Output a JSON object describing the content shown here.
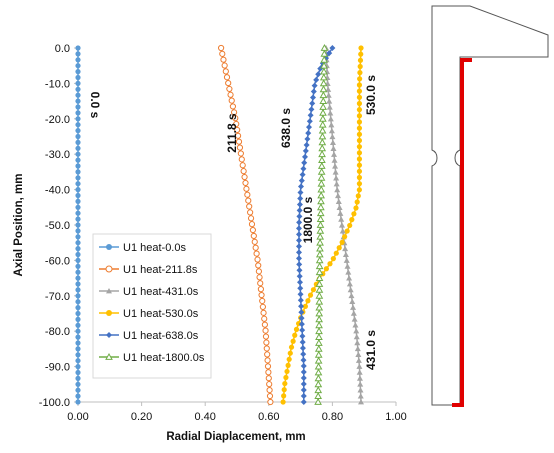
{
  "chart_data": {
    "type": "line",
    "title": "",
    "xlabel": "Radial Diaplacement, mm",
    "ylabel": "Axial Position, mm",
    "xlim": [
      0,
      1.0
    ],
    "ylim": [
      -100,
      0
    ],
    "x_ticks": [
      "0.00",
      "0.20",
      "0.40",
      "0.60",
      "0.80",
      "1.00"
    ],
    "y_ticks": [
      "0.0",
      "-10.0",
      "-20.0",
      "-30.0",
      "-40.0",
      "-50.0",
      "-60.0",
      "-70.0",
      "-80.0",
      "-90.0",
      "-100.0"
    ],
    "grid": false,
    "legend": "left",
    "series": [
      {
        "name": "U1 heat-0.0s",
        "color": "#5b9bd5",
        "marker": "circle-filled",
        "annotation": "0.0 s",
        "points": [
          [
            0.0,
            0
          ],
          [
            0.0,
            -100
          ]
        ]
      },
      {
        "name": "U1 heat-211.8s",
        "color": "#ed7d31",
        "marker": "circle-open",
        "annotation": "211.8 s",
        "points": [
          [
            0.45,
            0
          ],
          [
            0.495,
            -20
          ],
          [
            0.53,
            -40
          ],
          [
            0.565,
            -60
          ],
          [
            0.59,
            -80
          ],
          [
            0.605,
            -100
          ]
        ]
      },
      {
        "name": "U1 heat-431.0s",
        "color": "#a5a5a5",
        "marker": "triangle-filled",
        "annotation": "431.0 s",
        "points": [
          [
            0.78,
            0
          ],
          [
            0.785,
            -10
          ],
          [
            0.795,
            -20
          ],
          [
            0.805,
            -30
          ],
          [
            0.815,
            -40
          ],
          [
            0.83,
            -50
          ],
          [
            0.845,
            -60
          ],
          [
            0.86,
            -70
          ],
          [
            0.875,
            -80
          ],
          [
            0.885,
            -90
          ],
          [
            0.89,
            -100
          ]
        ]
      },
      {
        "name": "U1 heat-530.0s",
        "color": "#ffc000",
        "marker": "circle-filled",
        "annotation": "530.0 s",
        "points": [
          [
            0.89,
            0
          ],
          [
            0.885,
            -10
          ],
          [
            0.885,
            -20
          ],
          [
            0.885,
            -30
          ],
          [
            0.885,
            -40
          ],
          [
            0.875,
            -45
          ],
          [
            0.855,
            -50
          ],
          [
            0.83,
            -55
          ],
          [
            0.8,
            -60
          ],
          [
            0.76,
            -65
          ],
          [
            0.73,
            -70
          ],
          [
            0.705,
            -75
          ],
          [
            0.685,
            -80
          ],
          [
            0.67,
            -85
          ],
          [
            0.66,
            -90
          ],
          [
            0.65,
            -95
          ],
          [
            0.645,
            -100
          ]
        ]
      },
      {
        "name": "U1 heat-638.0s",
        "color": "#4472c4",
        "marker": "diamond-filled",
        "annotation": "638.0 s",
        "points": [
          [
            0.8,
            0
          ],
          [
            0.765,
            -5
          ],
          [
            0.745,
            -10
          ],
          [
            0.73,
            -20
          ],
          [
            0.715,
            -30
          ],
          [
            0.7,
            -40
          ],
          [
            0.695,
            -50
          ],
          [
            0.695,
            -60
          ],
          [
            0.7,
            -70
          ],
          [
            0.705,
            -80
          ],
          [
            0.71,
            -90
          ],
          [
            0.71,
            -100
          ]
        ]
      },
      {
        "name": "U1 heat-1800.0s",
        "color": "#70ad47",
        "marker": "triangle-open",
        "annotation": "1800.0 s",
        "points": [
          [
            0.775,
            0
          ],
          [
            0.77,
            -20
          ],
          [
            0.765,
            -40
          ],
          [
            0.76,
            -60
          ],
          [
            0.758,
            -80
          ],
          [
            0.755,
            -100
          ]
        ]
      }
    ]
  }
}
